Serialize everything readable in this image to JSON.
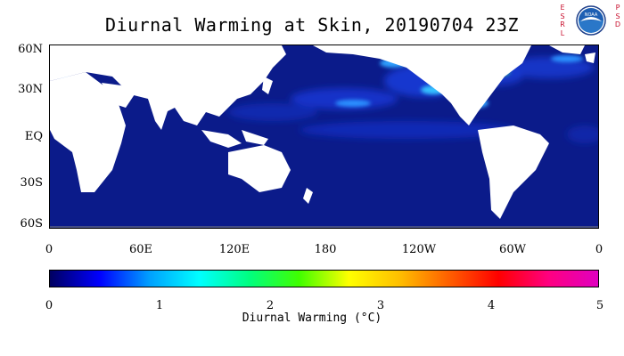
{
  "title": "Diurnal Warming at Skin, 20190704 23Z",
  "logo": {
    "left_text": [
      "E",
      "S",
      "R",
      "L"
    ],
    "right_text": [
      "P",
      "S",
      "D"
    ],
    "badge_text": "NOAA"
  },
  "map": {
    "lat_labels": [
      "60N",
      "30N",
      "EQ",
      "30S",
      "60S"
    ],
    "lon_labels": [
      "0",
      "60E",
      "120E",
      "180",
      "120W",
      "60W",
      "0"
    ],
    "colors": {
      "ocean_base": "#0b1b8a",
      "land": "#ffffff",
      "missing": "#808080"
    }
  },
  "colorbar": {
    "ticks": [
      "0",
      "1",
      "2",
      "3",
      "4",
      "5"
    ],
    "label": "Diurnal Warming (°C)",
    "stops": [
      "#000060",
      "#0000ff",
      "#00a0ff",
      "#00ffff",
      "#00ff80",
      "#40ff00",
      "#ffff00",
      "#ffc000",
      "#ff6000",
      "#ff0000",
      "#ff0080",
      "#e000c0"
    ]
  }
}
